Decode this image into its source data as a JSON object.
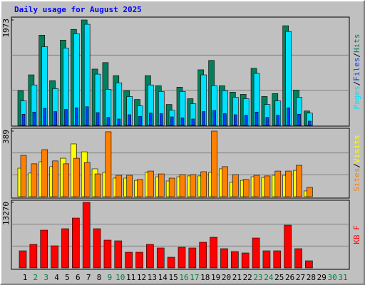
{
  "chart_data": {
    "type": "bar",
    "title": "Daily usage for August 2025",
    "categories": [
      "1",
      "2",
      "3",
      "4",
      "5",
      "6",
      "7",
      "8",
      "9",
      "10",
      "11",
      "12",
      "13",
      "14",
      "15",
      "16",
      "17",
      "18",
      "19",
      "20",
      "21",
      "22",
      "23",
      "24",
      "25",
      "26",
      "27",
      "28",
      "29",
      "30",
      "31"
    ],
    "category_colors": [
      "#000000",
      "#008040",
      "#008040",
      "#000000",
      "#000000",
      "#000000",
      "#000000",
      "#000000",
      "#008040",
      "#008040",
      "#000000",
      "#000000",
      "#000000",
      "#000000",
      "#000000",
      "#008040",
      "#008040",
      "#000000",
      "#000000",
      "#000000",
      "#000000",
      "#000000",
      "#008040",
      "#008040",
      "#000000",
      "#000000",
      "#000000",
      "#000000",
      "#000000",
      "#008040",
      "#008040"
    ],
    "legend_separator": "/",
    "panels": [
      {
        "ylim": [
          0,
          1973
        ],
        "yticks": [
          1973
        ],
        "series": [
          {
            "name": "Hits",
            "color": "#00805c",
            "values": [
              649,
              946,
              1689,
              838,
              1595,
              1797,
              1973,
              1054,
              1176,
              932,
              649,
              486,
              932,
              743,
              392,
              716,
              500,
              1041,
              1216,
              743,
              622,
              581,
              1068,
              541,
              595,
              1865,
              662,
              270,
              0,
              0,
              0
            ]
          },
          {
            "name": "Pages",
            "color": "#00e0ff",
            "values": [
              459,
              757,
              1473,
              689,
              1446,
              1716,
              1892,
              959,
              676,
              797,
              541,
              365,
              757,
              635,
              284,
              635,
              405,
              946,
              743,
              649,
              527,
              500,
              973,
              392,
              459,
              1757,
              527,
              230,
              0,
              0,
              0
            ]
          },
          {
            "name": "Files",
            "color": "#0040ff",
            "values": [
              210,
              250,
              320,
              260,
              300,
              330,
              350,
              240,
              150,
              120,
              200,
              170,
              230,
              220,
              160,
              140,
              120,
              260,
              280,
              220,
              200,
              190,
              250,
              150,
              190,
              330,
              210,
              80,
              0,
              0,
              0
            ]
          }
        ],
        "legend_order": [
          1,
          2,
          0
        ]
      },
      {
        "ylim": [
          0,
          389
        ],
        "yticks": [
          389
        ],
        "series": [
          {
            "name": "Visits",
            "color": "#ffff00",
            "values": [
              169,
              140,
              207,
              178,
              228,
              313,
              266,
              165,
              144,
              110,
              110,
              97,
              144,
              118,
              93,
              118,
              123,
              123,
              144,
              165,
              85,
              97,
              118,
              114,
              127,
              127,
              156,
              34,
              0,
              0,
              0
            ]
          },
          {
            "name": "Sites",
            "color": "#ff8000",
            "values": [
              245,
              195,
              279,
              212,
              195,
              228,
              203,
              135,
              385,
              127,
              127,
              102,
              152,
              135,
              110,
              131,
              131,
              148,
              389,
              178,
              131,
              102,
              127,
              123,
              152,
              152,
              186,
              55,
              0,
              0,
              0
            ]
          }
        ],
        "legend_order": [
          1,
          0
        ]
      },
      {
        "ylim": [
          0,
          13270
        ],
        "yticks": [
          13270
        ],
        "series": [
          {
            "name": "KB F",
            "color": "#ff0000",
            "values": [
              3462,
              4760,
              7645,
              4472,
              7934,
              10097,
              13270,
              7934,
              5626,
              5481,
              3173,
              3173,
              4760,
              4039,
              2164,
              4183,
              4039,
              5193,
              6202,
              3895,
              3318,
              3029,
              6058,
              3462,
              3462,
              8654,
              3895,
              1442,
              0,
              0,
              0
            ]
          }
        ],
        "legend_order": [
          0
        ]
      }
    ]
  }
}
